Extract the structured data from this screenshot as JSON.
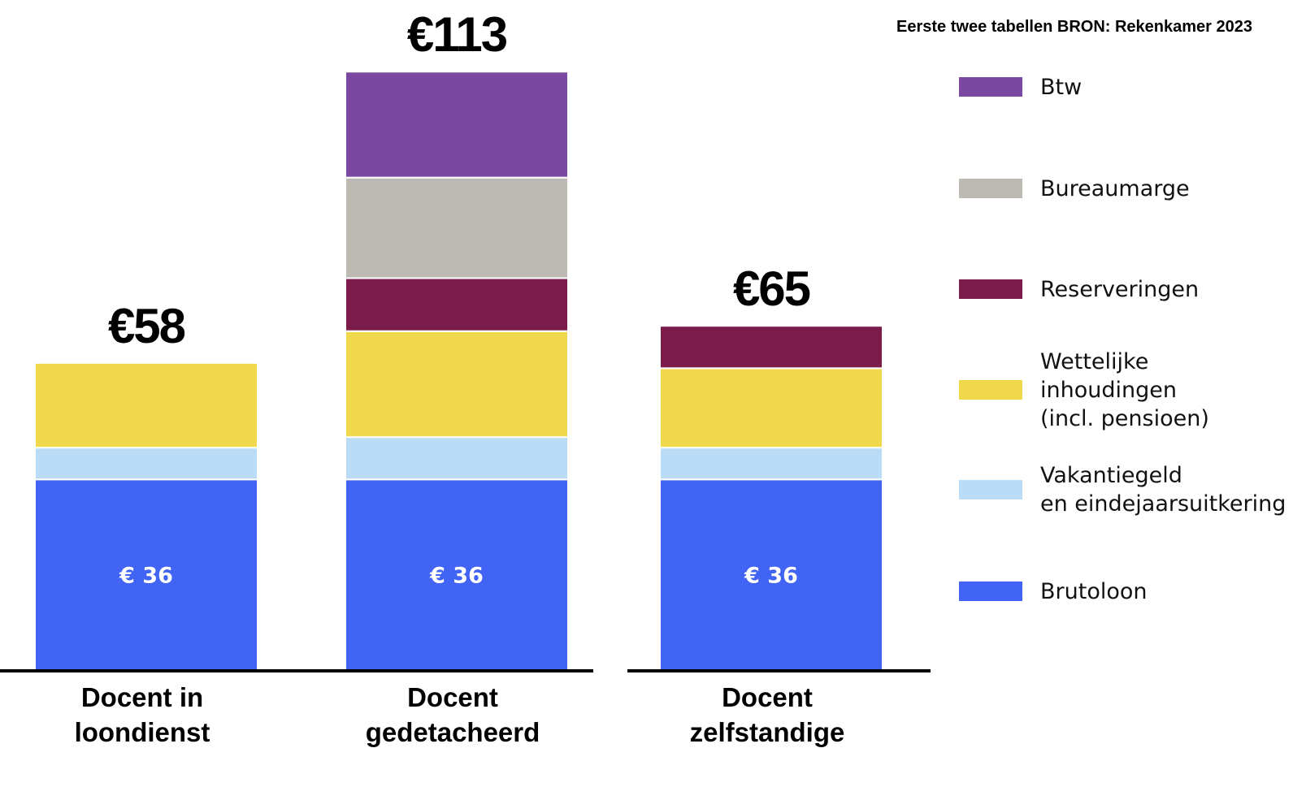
{
  "source_note": "Eerste twee tabellen BRON: Rekenkamer 2023",
  "chart_data": {
    "type": "bar",
    "stacked": true,
    "categories": [
      "Docent in loondienst",
      "Docent gedetacheerd",
      "Docent zelfstandige"
    ],
    "category_lines": [
      [
        "Docent in",
        "loondienst"
      ],
      [
        "Docent",
        "gedetacheerd"
      ],
      [
        "Docent",
        "zelfstandige"
      ]
    ],
    "totals": [
      "€58",
      "€113",
      "€65"
    ],
    "total_values": [
      58,
      113,
      65
    ],
    "series": [
      {
        "name": "Brutoloon",
        "color": "#4164F5",
        "values": [
          36,
          36,
          36
        ],
        "labels": [
          "€ 36",
          "€ 36",
          "€ 36"
        ]
      },
      {
        "name": "Vakantiegeld\nen eindejaarsuitkering",
        "color": "#BADCF6",
        "values": [
          6,
          8,
          6
        ]
      },
      {
        "name": "Wettelijke\ninhoudingen\n(incl. pensioen)",
        "color": "#F0D84C",
        "values": [
          16,
          20,
          15
        ]
      },
      {
        "name": "Reserveringen",
        "color": "#7B1C4B",
        "values": [
          0,
          10,
          8
        ]
      },
      {
        "name": "Bureaumarge",
        "color": "#BDBAB4",
        "values": [
          0,
          19,
          0
        ]
      },
      {
        "name": "Btw",
        "color": "#7A48A0",
        "values": [
          0,
          20,
          0
        ]
      }
    ],
    "legend_position": "right",
    "grid": false
  }
}
